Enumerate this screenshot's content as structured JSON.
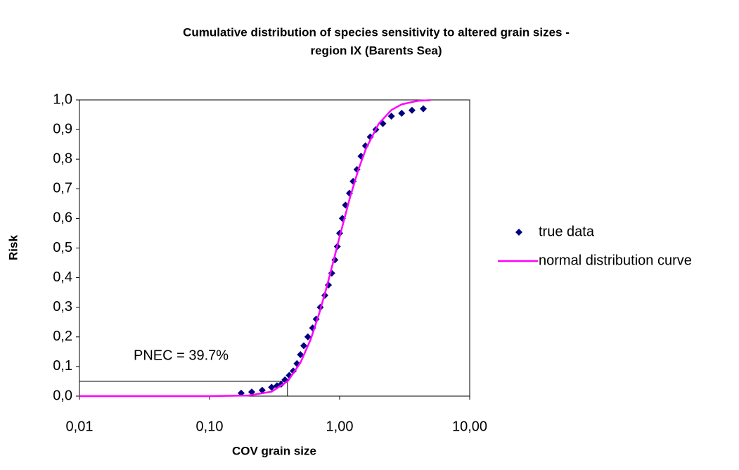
{
  "chart_data": {
    "type": "scatter",
    "title": [
      "Cumulative distribution of species sensitivity to altered grain sizes -",
      "region IX (Barents Sea)"
    ],
    "xlabel": "COV grain size",
    "ylabel": "Risk",
    "xscale": "log",
    "xlim": [
      0.01,
      10
    ],
    "ylim": [
      0,
      1
    ],
    "xticks": [
      {
        "value": 0.01,
        "label": "0,01"
      },
      {
        "value": 0.1,
        "label": "0,10"
      },
      {
        "value": 1,
        "label": "1,00"
      },
      {
        "value": 10,
        "label": "10,00"
      }
    ],
    "yticks": [
      {
        "value": 0,
        "label": "0,0"
      },
      {
        "value": 0.1,
        "label": "0,1"
      },
      {
        "value": 0.2,
        "label": "0,2"
      },
      {
        "value": 0.3,
        "label": "0,3"
      },
      {
        "value": 0.4,
        "label": "0,4"
      },
      {
        "value": 0.5,
        "label": "0,5"
      },
      {
        "value": 0.6,
        "label": "0,6"
      },
      {
        "value": 0.7,
        "label": "0,7"
      },
      {
        "value": 0.8,
        "label": "0,8"
      },
      {
        "value": 0.9,
        "label": "0,9"
      },
      {
        "value": 1,
        "label": "1,0"
      }
    ],
    "legend": "right",
    "series": [
      {
        "name": "true data",
        "type": "scatter",
        "color": "#000080",
        "x": [
          0.175,
          0.211,
          0.254,
          0.3,
          0.33,
          0.355,
          0.38,
          0.41,
          0.44,
          0.47,
          0.5,
          0.53,
          0.57,
          0.62,
          0.66,
          0.71,
          0.77,
          0.82,
          0.87,
          0.92,
          0.96,
          1.0,
          1.05,
          1.11,
          1.19,
          1.27,
          1.36,
          1.46,
          1.58,
          1.72,
          1.9,
          2.15,
          2.5,
          3.0,
          3.6,
          4.4
        ],
        "values": [
          0.01,
          0.014,
          0.02,
          0.03,
          0.035,
          0.04,
          0.055,
          0.07,
          0.085,
          0.11,
          0.14,
          0.17,
          0.2,
          0.23,
          0.26,
          0.3,
          0.34,
          0.375,
          0.415,
          0.46,
          0.505,
          0.55,
          0.6,
          0.645,
          0.685,
          0.725,
          0.765,
          0.81,
          0.845,
          0.875,
          0.9,
          0.92,
          0.945,
          0.955,
          0.965,
          0.97
        ]
      },
      {
        "name": "normal distribution curve",
        "type": "line",
        "color": "#ff00ff",
        "x": [
          0.01,
          0.1,
          0.2,
          0.3,
          0.4,
          0.5,
          0.6,
          0.7,
          0.8,
          0.9,
          1.0,
          1.2,
          1.4,
          1.6,
          2.0,
          2.5,
          3,
          4,
          5
        ],
        "values": [
          0,
          0,
          0.002,
          0.015,
          0.051,
          0.113,
          0.192,
          0.282,
          0.372,
          0.459,
          0.538,
          0.67,
          0.767,
          0.837,
          0.92,
          0.966,
          0.985,
          0.997,
          0.999
        ]
      }
    ],
    "annotation": {
      "label": "PNEC = 39.7%",
      "x": 0.397,
      "y": 0.05
    }
  }
}
